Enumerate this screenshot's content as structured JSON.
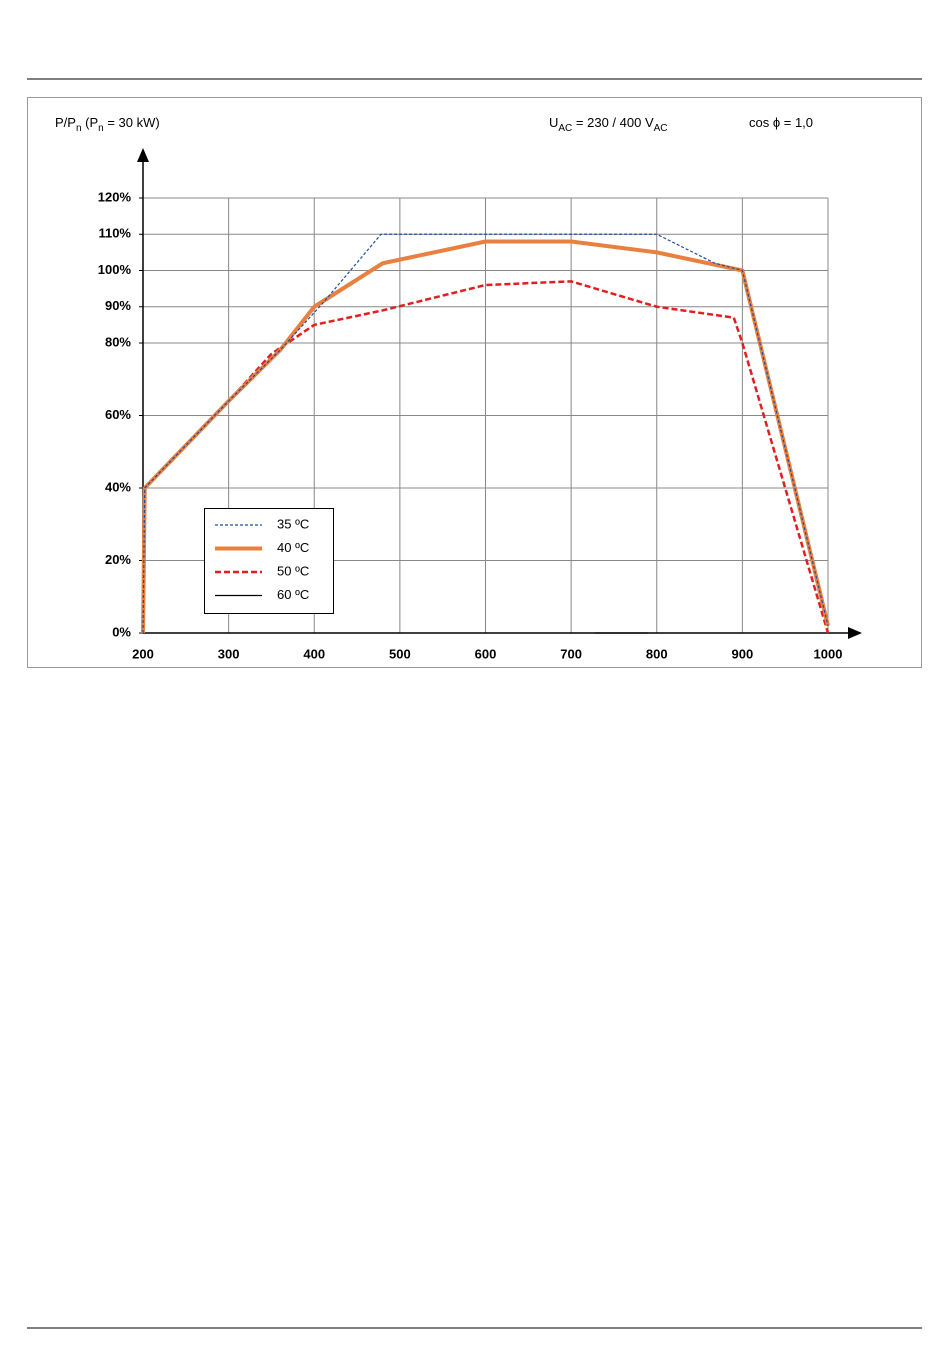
{
  "chart_data": {
    "type": "line",
    "y_label": [
      {
        "text": "P/P"
      },
      {
        "text": "n",
        "sub": true
      },
      {
        "text": " (P"
      },
      {
        "text": "n",
        "sub": true
      },
      {
        "text": " = 30 kW)"
      }
    ],
    "annotations": [
      [
        {
          "text": "U"
        },
        {
          "text": "AC",
          "sub": true
        },
        {
          "text": " = 230 / 400 V"
        },
        {
          "text": "AC",
          "sub": true
        }
      ],
      [
        {
          "text": "cos ϕ = 1,0"
        }
      ]
    ],
    "xlim": [
      200,
      1000
    ],
    "xticks": [
      200,
      300,
      400,
      500,
      600,
      700,
      800,
      900,
      1000
    ],
    "ylim": [
      0,
      120
    ],
    "yticks": [
      {
        "value": 0,
        "label": "0%"
      },
      {
        "value": 20,
        "label": "20%"
      },
      {
        "value": 40,
        "label": "40%"
      },
      {
        "value": 60,
        "label": "60%"
      },
      {
        "value": 80,
        "label": "80%"
      },
      {
        "value": 90,
        "label": "90%"
      },
      {
        "value": 100,
        "label": "100%"
      },
      {
        "value": 110,
        "label": "110%"
      },
      {
        "value": 120,
        "label": "120%"
      }
    ],
    "grid": true,
    "series": [
      {
        "name": "35 ºC",
        "color": "#1f4e9a",
        "style": "dashed",
        "x": [
          200,
          202,
          300,
          360,
          410,
          478,
          800,
          868,
          900,
          1000
        ],
        "values": [
          0,
          40,
          64,
          78,
          91,
          110,
          110,
          102,
          100,
          2
        ]
      },
      {
        "name": "40 ºC",
        "color": "#e8803f",
        "style": "solid",
        "x": [
          200,
          202,
          300,
          360,
          400,
          480,
          600,
          700,
          800,
          900,
          1000
        ],
        "values": [
          0,
          40,
          64,
          78,
          90,
          102,
          108,
          108,
          105,
          100,
          2
        ]
      },
      {
        "name": "50 ºC",
        "color": "#e02020",
        "style": "dashed",
        "x": [
          200,
          202,
          300,
          350,
          400,
          480,
          600,
          700,
          800,
          890,
          900,
          1000
        ],
        "values": [
          0,
          40,
          64,
          77,
          85,
          89,
          96,
          97,
          90,
          87,
          80,
          0
        ]
      },
      {
        "name": "60 ºC",
        "color": "#000000",
        "style": "solid",
        "x": [
          728,
          790
        ],
        "values": [
          0,
          0
        ]
      }
    ]
  }
}
